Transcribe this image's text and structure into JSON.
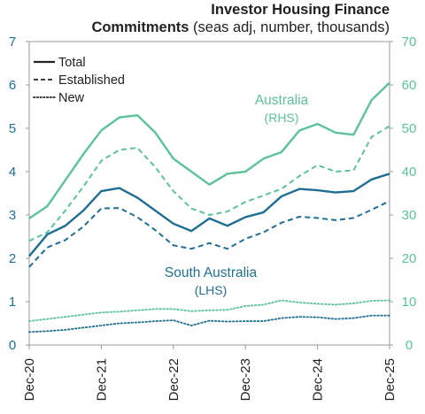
{
  "title": {
    "line1": "Investor Housing Finance",
    "line2_bold": "Commitments",
    "line2_rest": " (seas adj, number, thousands)"
  },
  "colors": {
    "sa": "#1f6f93",
    "australia": "#5bc39a",
    "axis_left": "#1f6f93",
    "axis_right": "#5bc39a",
    "text": "#222222",
    "grid": "#bfbfbf"
  },
  "legend": {
    "items": [
      {
        "label": "Total",
        "style": "solid"
      },
      {
        "label": "Established",
        "style": "dashed"
      },
      {
        "label": "New",
        "style": "dotted"
      }
    ]
  },
  "annotations": {
    "australia": {
      "name": "Australia",
      "axis": "(RHS)"
    },
    "sa": {
      "name": "South Australia",
      "axis": "(LHS)"
    }
  },
  "chart_data": {
    "type": "line",
    "x_ticks": [
      "Dec-20",
      "Dec-21",
      "Dec-22",
      "Dec-23",
      "Dec-24",
      "Dec-25"
    ],
    "x_range": [
      "Dec-20",
      "Dec-25"
    ],
    "x_step": "quarter",
    "x": [
      "Dec-20",
      "Mar-21",
      "Jun-21",
      "Sep-21",
      "Dec-21",
      "Mar-22",
      "Jun-22",
      "Sep-22",
      "Dec-22",
      "Mar-23",
      "Jun-23",
      "Sep-23",
      "Dec-23",
      "Mar-24",
      "Jun-24",
      "Sep-24",
      "Dec-24",
      "Mar-25",
      "Jun-25",
      "Sep-25",
      "Dec-25"
    ],
    "y_left": {
      "ticks": [
        "0",
        "1",
        "2",
        "3",
        "4",
        "5",
        "6",
        "7"
      ],
      "range": [
        0,
        7
      ]
    },
    "y_right": {
      "ticks": [
        "0",
        "10",
        "20",
        "30",
        "40",
        "50",
        "60",
        "70"
      ],
      "range": [
        0,
        70
      ]
    },
    "grid": false,
    "legend_position": "top-left",
    "series": [
      {
        "name": "South Australia",
        "sub": "Total",
        "axis": "left",
        "style": "solid",
        "values": [
          2.05,
          2.55,
          2.75,
          3.1,
          3.55,
          3.62,
          3.4,
          3.1,
          2.8,
          2.63,
          2.92,
          2.75,
          2.95,
          3.06,
          3.43,
          3.6,
          3.57,
          3.52,
          3.55,
          3.82,
          3.95
        ]
      },
      {
        "name": "South Australia",
        "sub": "Established",
        "axis": "left",
        "style": "dashed",
        "values": [
          1.8,
          2.25,
          2.42,
          2.73,
          3.15,
          3.16,
          2.95,
          2.65,
          2.3,
          2.22,
          2.35,
          2.22,
          2.45,
          2.6,
          2.82,
          2.96,
          2.93,
          2.88,
          2.93,
          3.12,
          3.32
        ]
      },
      {
        "name": "South Australia",
        "sub": "New",
        "axis": "left",
        "style": "dotted",
        "values": [
          0.3,
          0.32,
          0.35,
          0.4,
          0.45,
          0.5,
          0.52,
          0.55,
          0.57,
          0.45,
          0.56,
          0.54,
          0.55,
          0.55,
          0.62,
          0.65,
          0.64,
          0.6,
          0.62,
          0.68,
          0.68
        ]
      },
      {
        "name": "Australia",
        "sub": "Total",
        "axis": "right",
        "style": "solid",
        "values": [
          29.2,
          32.0,
          38.0,
          44.0,
          49.5,
          52.5,
          53.0,
          49.0,
          43.0,
          40.0,
          37.0,
          39.5,
          40.0,
          43.0,
          44.5,
          49.5,
          51.0,
          49.0,
          48.5,
          56.5,
          60.5
        ]
      },
      {
        "name": "Australia",
        "sub": "Established",
        "axis": "right",
        "style": "dashed",
        "values": [
          24.0,
          26.0,
          31.0,
          36.5,
          42.5,
          45.0,
          45.5,
          41.0,
          35.5,
          31.5,
          30.0,
          30.8,
          33.0,
          34.5,
          36.0,
          39.0,
          41.5,
          40.0,
          40.3,
          48.0,
          50.5
        ]
      },
      {
        "name": "Australia",
        "sub": "New",
        "axis": "right",
        "style": "dotted",
        "values": [
          5.5,
          6.0,
          6.5,
          7.0,
          7.5,
          7.7,
          8.0,
          8.3,
          8.3,
          7.8,
          8.0,
          8.1,
          9.0,
          9.3,
          10.3,
          9.8,
          9.5,
          9.3,
          9.6,
          10.2,
          10.3
        ]
      }
    ]
  }
}
